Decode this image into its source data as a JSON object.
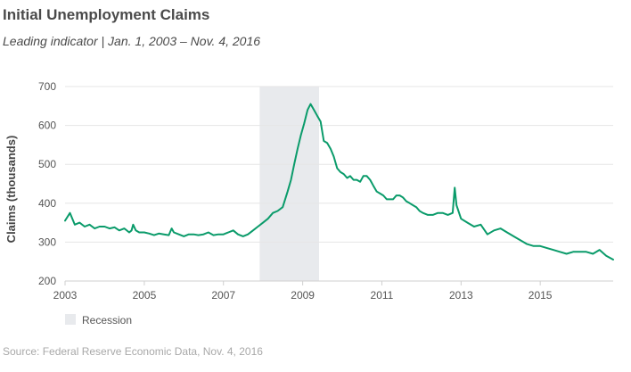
{
  "header": {
    "title": "Initial Unemployment Claims",
    "subtitle": "Leading indicator  |  Jan. 1, 2003 – Nov. 4, 2016"
  },
  "footer": {
    "source": "Source: Federal Reserve Economic Data, Nov. 4, 2016"
  },
  "legend": {
    "recession_label": "Recession"
  },
  "colors": {
    "line": "#0a9b6a",
    "recession": "#e8eaed",
    "grid": "#e6e6e6"
  },
  "chart_data": {
    "type": "line",
    "ylabel": "Claims (thousands)",
    "xlabel": "",
    "ylim": [
      200,
      700
    ],
    "xlim": [
      "2003-01-01",
      "2016-11-04"
    ],
    "y_ticks": [
      200,
      300,
      400,
      500,
      600,
      700
    ],
    "x_ticks": [
      {
        "value": "2003-01-01",
        "label": "2003"
      },
      {
        "value": "2005-01-01",
        "label": "2005"
      },
      {
        "value": "2007-01-01",
        "label": "2007"
      },
      {
        "value": "2009-01-01",
        "label": "2009"
      },
      {
        "value": "2011-01-01",
        "label": "2011"
      },
      {
        "value": "2013-01-01",
        "label": "2013"
      },
      {
        "value": "2015-01-01",
        "label": "2015"
      }
    ],
    "grid": true,
    "legend_position": "bottom-left",
    "recession": {
      "start": "2007-12-01",
      "end": "2009-06-01",
      "label": "Recession"
    },
    "series": [
      {
        "x": [
          "2003-01-01",
          "2003-02-15",
          "2003-04-01",
          "2003-05-15",
          "2003-07-01",
          "2003-08-15",
          "2003-10-01",
          "2003-11-15",
          "2004-01-01",
          "2004-02-15",
          "2004-04-01",
          "2004-05-15",
          "2004-07-01",
          "2004-08-15",
          "2004-09-05",
          "2004-09-20",
          "2004-10-15",
          "2004-11-15",
          "2005-01-01",
          "2005-02-15",
          "2005-04-01",
          "2005-05-15",
          "2005-07-01",
          "2005-08-15",
          "2005-09-10",
          "2005-10-01",
          "2005-11-15",
          "2006-01-01",
          "2006-02-15",
          "2006-04-01",
          "2006-05-15",
          "2006-07-01",
          "2006-08-15",
          "2006-10-01",
          "2006-11-15",
          "2007-01-01",
          "2007-02-15",
          "2007-04-01",
          "2007-05-15",
          "2007-07-01",
          "2007-08-15",
          "2007-10-01",
          "2007-11-15",
          "2008-01-01",
          "2008-02-15",
          "2008-04-01",
          "2008-05-15",
          "2008-07-01",
          "2008-08-15",
          "2008-09-15",
          "2008-10-15",
          "2008-11-15",
          "2008-12-15",
          "2009-01-15",
          "2009-02-15",
          "2009-03-15",
          "2009-04-15",
          "2009-05-15",
          "2009-06-15",
          "2009-07-15",
          "2009-08-15",
          "2009-09-15",
          "2009-10-15",
          "2009-11-15",
          "2009-12-15",
          "2010-01-15",
          "2010-02-15",
          "2010-03-15",
          "2010-04-15",
          "2010-05-15",
          "2010-06-15",
          "2010-07-15",
          "2010-08-15",
          "2010-09-15",
          "2010-10-15",
          "2010-11-15",
          "2010-12-15",
          "2011-01-15",
          "2011-02-15",
          "2011-03-15",
          "2011-04-15",
          "2011-05-15",
          "2011-06-15",
          "2011-07-15",
          "2011-08-15",
          "2011-09-15",
          "2011-10-15",
          "2011-11-15",
          "2011-12-15",
          "2012-01-15",
          "2012-03-01",
          "2012-04-15",
          "2012-06-01",
          "2012-07-15",
          "2012-09-01",
          "2012-10-15",
          "2012-11-03",
          "2012-11-20",
          "2013-01-01",
          "2013-03-01",
          "2013-05-01",
          "2013-07-01",
          "2013-09-01",
          "2013-11-01",
          "2014-01-01",
          "2014-03-01",
          "2014-05-01",
          "2014-07-01",
          "2014-09-01",
          "2014-11-01",
          "2015-01-01",
          "2015-03-01",
          "2015-05-01",
          "2015-07-01",
          "2015-09-01",
          "2015-11-01",
          "2016-01-01",
          "2016-03-01",
          "2016-05-01",
          "2016-07-01",
          "2016-09-01",
          "2016-11-04"
        ],
        "values": [
          355,
          375,
          345,
          350,
          340,
          345,
          335,
          340,
          340,
          335,
          338,
          330,
          335,
          325,
          330,
          345,
          330,
          325,
          325,
          322,
          318,
          322,
          320,
          318,
          335,
          325,
          320,
          315,
          320,
          320,
          318,
          320,
          325,
          318,
          320,
          320,
          325,
          330,
          320,
          315,
          320,
          330,
          340,
          350,
          360,
          375,
          380,
          390,
          430,
          460,
          500,
          540,
          575,
          605,
          640,
          655,
          640,
          625,
          610,
          560,
          555,
          540,
          520,
          490,
          480,
          475,
          465,
          470,
          460,
          460,
          455,
          470,
          470,
          460,
          445,
          430,
          425,
          420,
          410,
          410,
          410,
          420,
          420,
          415,
          405,
          400,
          395,
          390,
          380,
          375,
          370,
          370,
          375,
          375,
          370,
          375,
          440,
          395,
          360,
          350,
          340,
          345,
          320,
          330,
          335,
          325,
          315,
          305,
          295,
          290,
          290,
          285,
          280,
          275,
          270,
          275,
          275,
          275,
          270,
          280,
          265,
          255
        ]
      }
    ]
  }
}
